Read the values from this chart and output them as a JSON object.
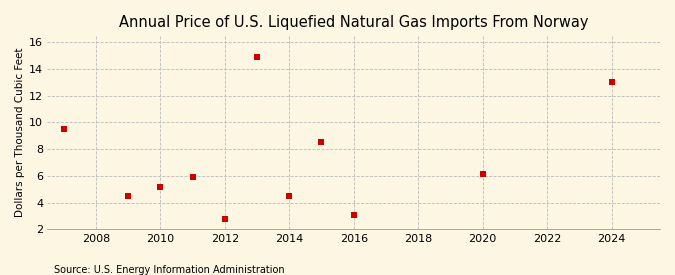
{
  "title": "Annual Price of U.S. Liquefied Natural Gas Imports From Norway",
  "ylabel": "Dollars per Thousand Cubic Feet",
  "source": "Source: U.S. Energy Information Administration",
  "years": [
    2007,
    2009,
    2010,
    2011,
    2012,
    2013,
    2014,
    2015,
    2016,
    2020,
    2024
  ],
  "values": [
    9.5,
    4.5,
    5.2,
    5.9,
    2.8,
    14.9,
    4.5,
    8.5,
    3.1,
    6.1,
    13.0
  ],
  "xlim": [
    2006.5,
    2025.5
  ],
  "ylim": [
    2,
    16.5
  ],
  "yticks": [
    2,
    4,
    6,
    8,
    10,
    12,
    14,
    16
  ],
  "xticks": [
    2008,
    2010,
    2012,
    2014,
    2016,
    2018,
    2020,
    2022,
    2024
  ],
  "marker_color": "#cc0000",
  "marker": "s",
  "marker_size": 4,
  "bg_color": "#fdf6e3",
  "grid_color": "#bbbbbb",
  "title_fontsize": 10.5,
  "label_fontsize": 7.5,
  "tick_fontsize": 8,
  "source_fontsize": 7
}
